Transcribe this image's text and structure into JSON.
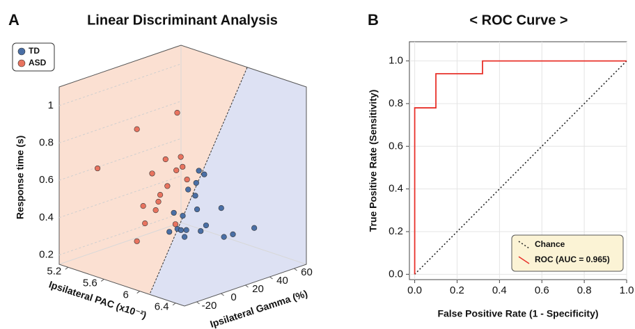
{
  "chart_data": [
    {
      "type": "scatter3d",
      "panel_label": "A",
      "title": "Linear Discriminant Analysis",
      "xlabel": "Ipsilateral PAC (x10⁻²)",
      "ylabel": "Ipsilateral Gamma (%)",
      "zlabel": "Response time (s)",
      "xlim": [
        5.1,
        6.5
      ],
      "ylim": [
        -30,
        70
      ],
      "zlim": [
        0.15,
        1.1
      ],
      "xticks": [
        5.2,
        5.6,
        6.0,
        6.4
      ],
      "yticks": [
        -20,
        0,
        20,
        40,
        60
      ],
      "zticks": [
        0.2,
        0.4,
        0.6,
        0.8,
        1.0
      ],
      "legend": "upper left",
      "series": [
        {
          "name": "TD",
          "color": "#4a6fa5",
          "x": [
            5.98,
            6.04,
            5.86,
            5.94,
            5.96,
            6.23,
            5.7,
            5.8,
            5.74,
            5.78,
            5.84,
            5.82,
            5.65,
            6.06,
            6.0,
            6.26,
            6.36,
            6.19,
            5.95
          ],
          "y": [
            20,
            20,
            20,
            20,
            20,
            20,
            20,
            20,
            20,
            20,
            20,
            20,
            20,
            20,
            20,
            20,
            20,
            50,
            20
          ],
          "z": [
            0.68,
            0.67,
            0.56,
            0.54,
            0.47,
            0.52,
            0.41,
            0.41,
            0.33,
            0.33,
            0.34,
            0.3,
            0.3,
            0.4,
            0.36,
            0.37,
            0.4,
            0.34,
            0.61
          ]
        },
        {
          "name": "ASD",
          "color": "#e8735f",
          "x": [
            5.12,
            5.56,
            6.01,
            5.73,
            5.88,
            6.05,
            6.07,
            6.0,
            5.82,
            5.9,
            5.8,
            5.63,
            5.77,
            5.65,
            5.99,
            5.56,
            6.12
          ],
          "y": [
            0,
            0,
            0,
            0,
            0,
            0,
            0,
            0,
            0,
            0,
            0,
            0,
            0,
            0,
            0,
            0,
            0
          ],
          "z": [
            0.6,
            0.88,
            1.04,
            0.67,
            0.77,
            0.81,
            0.76,
            0.73,
            0.57,
            0.63,
            0.53,
            0.48,
            0.48,
            0.39,
            0.44,
            0.28,
            0.7
          ]
        }
      ]
    },
    {
      "type": "line",
      "panel_label": "B",
      "title": "< ROC Curve >",
      "xlabel": "False Positive Rate (1 - Specificity)",
      "ylabel": "True Positive Rate (Sensitivity)",
      "xlim": [
        -0.025,
        1.0
      ],
      "ylim": [
        -0.025,
        1.09
      ],
      "xticks": [
        {
          "value": 0,
          "label": "0.0"
        },
        0.2,
        0.4,
        0.6,
        0.8,
        {
          "value": 1,
          "label": "1.0"
        }
      ],
      "yticks": [
        {
          "value": 0,
          "label": "0.0"
        },
        0.2,
        0.4,
        0.6,
        0.8,
        {
          "value": 1,
          "label": "1.0"
        }
      ],
      "grid": true,
      "legend": "lower right",
      "series": [
        {
          "name": "Chance",
          "color": "#222222",
          "style": "dotted",
          "x": [
            0,
            1
          ],
          "y": [
            0,
            1
          ]
        },
        {
          "name": "ROC (AUC = 0.965)",
          "color": "#e8312a",
          "style": "solid",
          "x": [
            0,
            0,
            0.1,
            0.1,
            0.32,
            0.32,
            1
          ],
          "y": [
            0,
            0.78,
            0.78,
            0.94,
            0.94,
            1,
            1
          ]
        }
      ]
    }
  ]
}
